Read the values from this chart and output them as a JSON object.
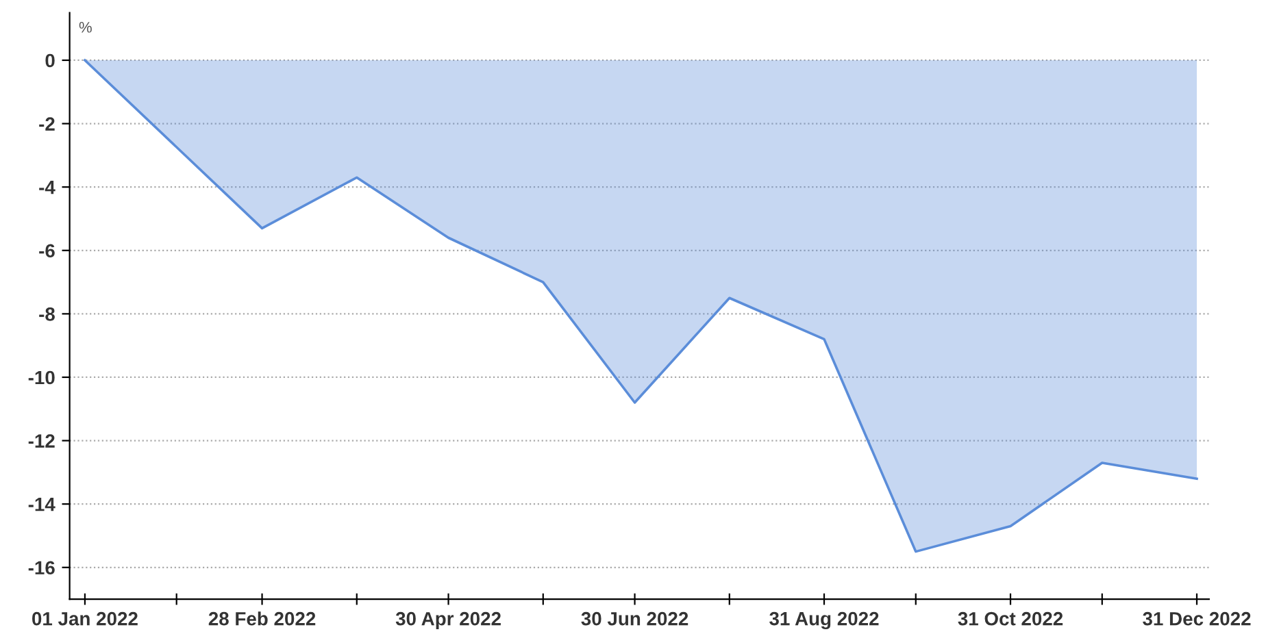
{
  "chart_data": {
    "type": "area",
    "ylabel": "%",
    "x": [
      "2022-01-01",
      "2022-02-28",
      "2022-03-31",
      "2022-04-30",
      "2022-05-31",
      "2022-06-30",
      "2022-07-31",
      "2022-08-31",
      "2022-09-30",
      "2022-10-31",
      "2022-11-30",
      "2022-12-31"
    ],
    "series": [
      {
        "color": "#5b8dd9",
        "values": [
          0,
          -5.3,
          -3.7,
          -5.6,
          -7.0,
          -10.8,
          -7.5,
          -8.8,
          -15.5,
          -14.7,
          -12.7,
          -13.2
        ]
      }
    ],
    "xlim": [
      "2021-12-27",
      "2023-01-04"
    ],
    "xticks": [
      {
        "value": "2022-01-01",
        "label": "01 Jan 2022"
      },
      {
        "value": "2022-01-31",
        "label": null
      },
      {
        "value": "2022-02-28",
        "label": "28 Feb 2022"
      },
      {
        "value": "2022-03-31",
        "label": null
      },
      {
        "value": "2022-04-30",
        "label": "30 Apr 2022"
      },
      {
        "value": "2022-05-31",
        "label": null
      },
      {
        "value": "2022-06-30",
        "label": "30 Jun 2022"
      },
      {
        "value": "2022-07-31",
        "label": null
      },
      {
        "value": "2022-08-31",
        "label": "31 Aug 2022"
      },
      {
        "value": "2022-09-30",
        "label": null
      },
      {
        "value": "2022-10-31",
        "label": "31 Oct 2022"
      },
      {
        "value": "2022-11-30",
        "label": null
      },
      {
        "value": "2022-12-31",
        "label": "31 Dec 2022"
      }
    ],
    "ylim": [
      -17,
      1.5
    ],
    "yticks": [
      0,
      -2,
      -4,
      -6,
      -8,
      -10,
      -12,
      -14,
      -16
    ],
    "grid": "y",
    "marker": "none",
    "line_style": "solid"
  }
}
